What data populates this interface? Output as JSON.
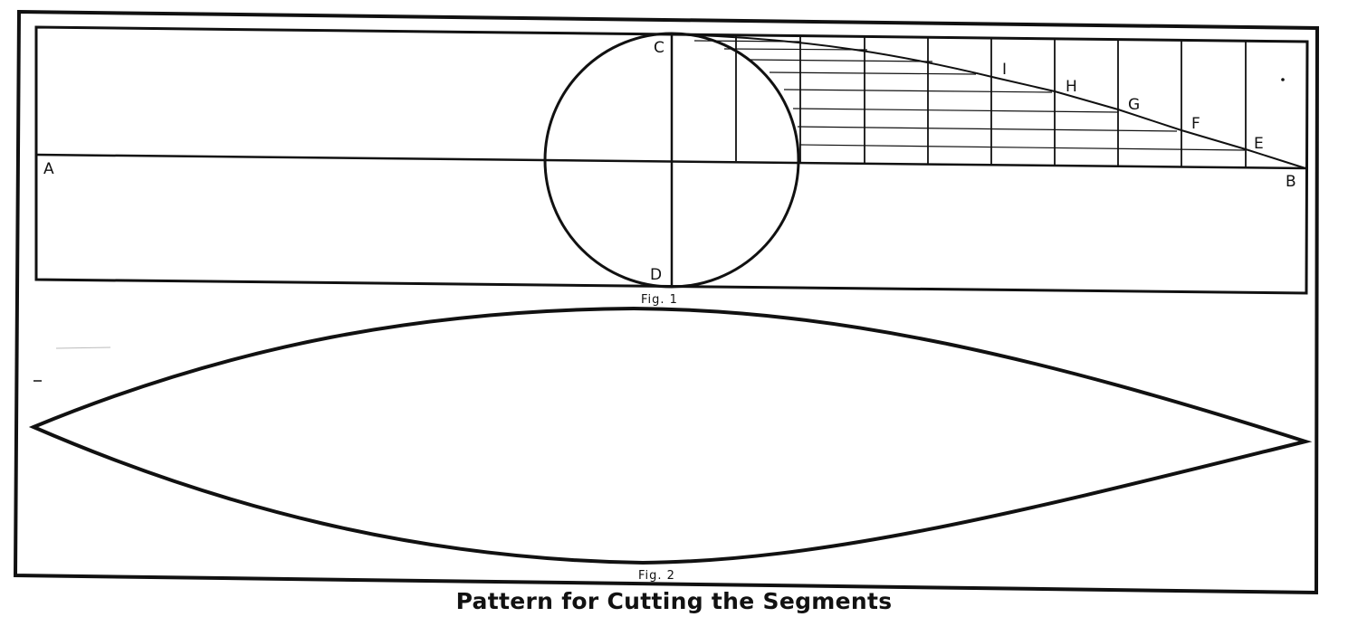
{
  "points": {
    "A": "A",
    "B": "B",
    "C": "C",
    "D": "D",
    "E": "E",
    "F": "F",
    "G": "G",
    "H": "H",
    "I": "I"
  },
  "figures": {
    "fig1": "Fig. 1",
    "fig2": "Fig. 2"
  },
  "caption": "Pattern for Cutting the Segments"
}
